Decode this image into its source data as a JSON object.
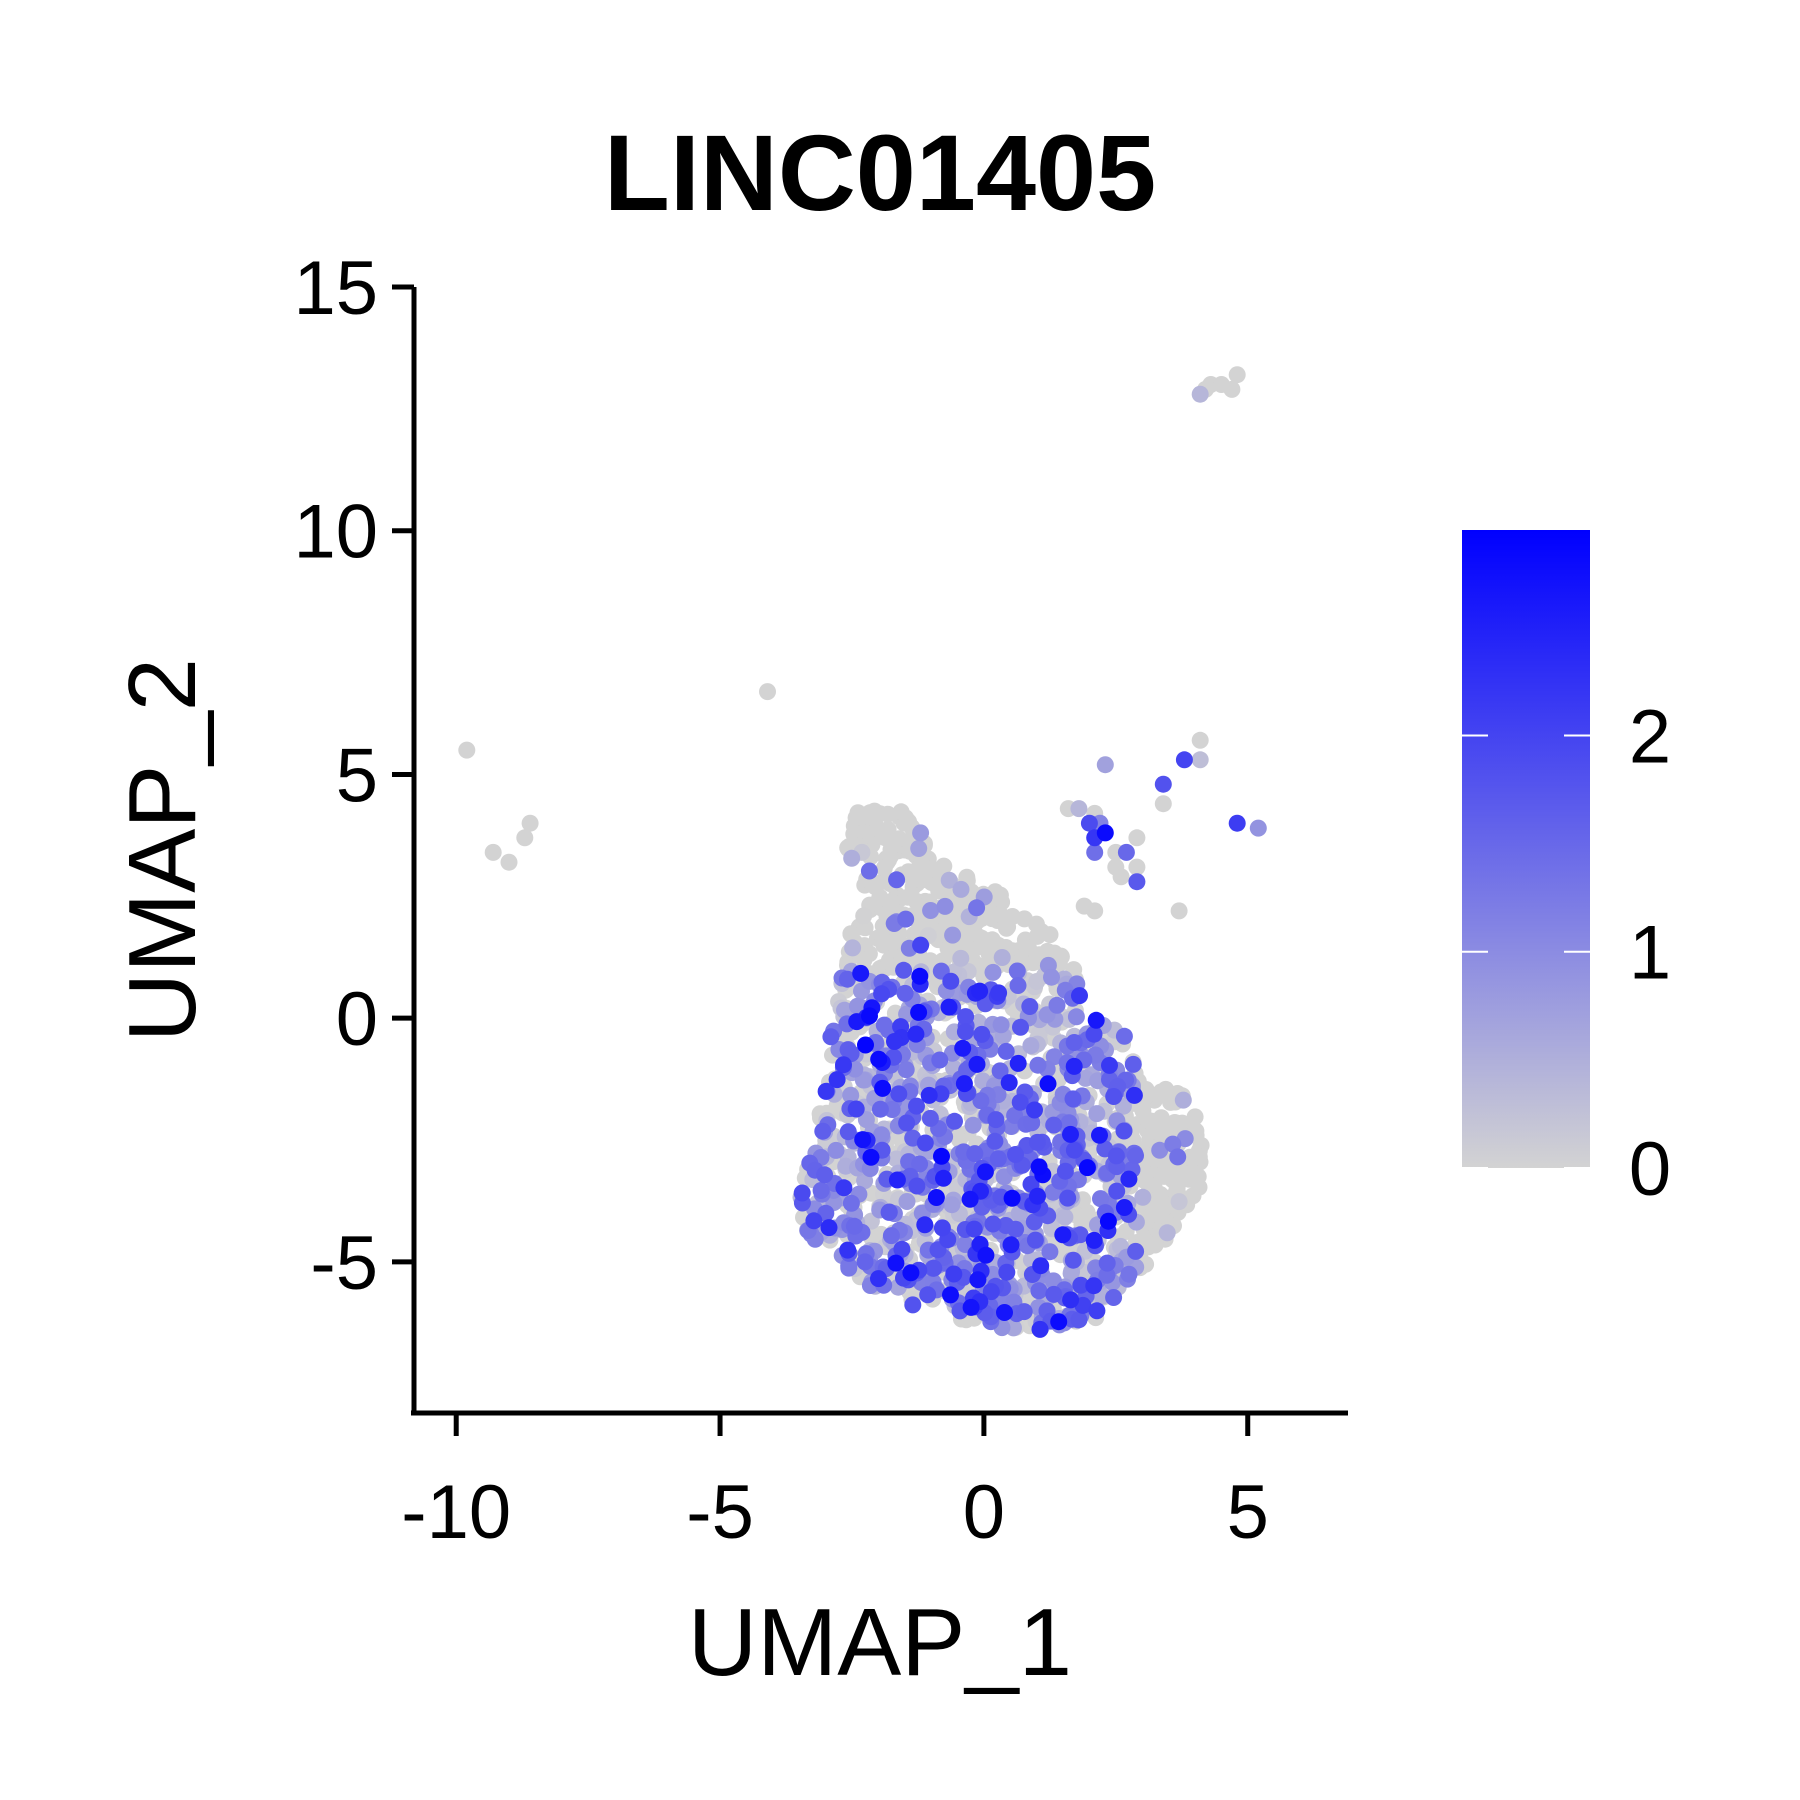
{
  "chart_data": {
    "type": "scatter",
    "title": "LINC01405",
    "xlabel": "UMAP_1",
    "ylabel": "UMAP_2",
    "xlim": [
      -10.8,
      6.9
    ],
    "ylim": [
      -8.1,
      15.0
    ],
    "xticks": [
      -10,
      -5,
      0,
      5
    ],
    "yticks": [
      -5,
      0,
      5,
      10,
      15
    ],
    "xtick_labels": [
      "-10",
      "-5",
      "0",
      "5"
    ],
    "ytick_labels": [
      "-5",
      "0",
      "5",
      "10",
      "15"
    ],
    "grid": false,
    "color_scale": {
      "low_color": "#d3d3d3",
      "high_color": "#0000ff",
      "min": 0,
      "max": 2.95,
      "ticks": [
        0,
        1,
        2
      ],
      "tick_labels": [
        "0",
        "1",
        "2"
      ],
      "legend_position": "right"
    },
    "main_cluster": {
      "description_points": "dense cluster of cells",
      "hull": [
        [
          -2.7,
          4.2
        ],
        [
          -1.6,
          4.3
        ],
        [
          -1.0,
          3.4
        ],
        [
          0.3,
          2.6
        ],
        [
          1.6,
          1.5
        ],
        [
          1.9,
          0.2
        ],
        [
          2.6,
          -0.1
        ],
        [
          3.0,
          -1.2
        ],
        [
          3.8,
          -1.4
        ],
        [
          4.2,
          -2.4
        ],
        [
          4.1,
          -3.5
        ],
        [
          3.4,
          -4.7
        ],
        [
          2.9,
          -5.3
        ],
        [
          2.1,
          -6.2
        ],
        [
          1.0,
          -6.4
        ],
        [
          -0.3,
          -6.3
        ],
        [
          -1.5,
          -5.9
        ],
        [
          -2.5,
          -5.3
        ],
        [
          -3.4,
          -4.4
        ],
        [
          -3.5,
          -3.6
        ],
        [
          -3.2,
          -2.5
        ],
        [
          -3.0,
          -1.3
        ],
        [
          -2.9,
          0.0
        ],
        [
          -2.6,
          1.6
        ],
        [
          -2.2,
          2.6
        ],
        [
          -2.7,
          3.7
        ]
      ],
      "n_points": 1800,
      "top_band_y": 1.0,
      "right_gray_x": 2.9,
      "expression_mean": 0.9
    },
    "points": [
      {
        "x": 4.1,
        "y": 12.8,
        "value": 0.4
      },
      {
        "x": 4.3,
        "y": 13.0,
        "value": 0.0
      },
      {
        "x": 4.5,
        "y": 13.0,
        "value": 0.0
      },
      {
        "x": 4.7,
        "y": 12.9,
        "value": 0.0
      },
      {
        "x": 4.8,
        "y": 13.2,
        "value": 0.0
      },
      {
        "x": 4.2,
        "y": 12.9,
        "value": 0.0
      },
      {
        "x": -4.1,
        "y": 6.7,
        "value": 0.0
      },
      {
        "x": -9.8,
        "y": 5.5,
        "value": 0.0
      },
      {
        "x": -9.3,
        "y": 3.4,
        "value": 0.0
      },
      {
        "x": -9.0,
        "y": 3.2,
        "value": 0.0
      },
      {
        "x": -8.7,
        "y": 3.7,
        "value": 0.0
      },
      {
        "x": -8.6,
        "y": 4.0,
        "value": 0.0
      },
      {
        "x": 4.1,
        "y": 5.7,
        "value": 0.0
      },
      {
        "x": 3.8,
        "y": 5.3,
        "value": 2.0
      },
      {
        "x": 4.1,
        "y": 5.3,
        "value": 0.3
      },
      {
        "x": 2.3,
        "y": 5.2,
        "value": 0.7
      },
      {
        "x": 3.4,
        "y": 4.8,
        "value": 1.8
      },
      {
        "x": 3.4,
        "y": 4.4,
        "value": 0.0
      },
      {
        "x": 1.6,
        "y": 4.3,
        "value": 0.0
      },
      {
        "x": 1.8,
        "y": 4.3,
        "value": 0.4
      },
      {
        "x": 2.1,
        "y": 4.2,
        "value": 0.0
      },
      {
        "x": 2.0,
        "y": 4.0,
        "value": 1.9
      },
      {
        "x": 2.2,
        "y": 4.0,
        "value": 1.1
      },
      {
        "x": 2.1,
        "y": 3.7,
        "value": 2.2
      },
      {
        "x": 2.3,
        "y": 3.8,
        "value": 2.8
      },
      {
        "x": 2.9,
        "y": 3.7,
        "value": 0.0
      },
      {
        "x": 2.1,
        "y": 3.4,
        "value": 1.4
      },
      {
        "x": 2.5,
        "y": 3.4,
        "value": 0.0
      },
      {
        "x": 2.7,
        "y": 3.4,
        "value": 1.5
      },
      {
        "x": 2.5,
        "y": 3.1,
        "value": 0.0
      },
      {
        "x": 2.9,
        "y": 3.1,
        "value": 0.0
      },
      {
        "x": 2.6,
        "y": 2.9,
        "value": 0.0
      },
      {
        "x": 2.9,
        "y": 2.8,
        "value": 1.7
      },
      {
        "x": 1.9,
        "y": 2.3,
        "value": 0.0
      },
      {
        "x": 2.1,
        "y": 2.2,
        "value": 0.0
      },
      {
        "x": 3.7,
        "y": 2.2,
        "value": 0.0
      },
      {
        "x": 4.8,
        "y": 4.0,
        "value": 2.1
      },
      {
        "x": 5.2,
        "y": 3.9,
        "value": 0.9
      },
      {
        "x": -1.2,
        "y": 1.5,
        "value": 2.0
      },
      {
        "x": -1.2,
        "y": 3.8,
        "value": 0.8
      }
    ]
  }
}
